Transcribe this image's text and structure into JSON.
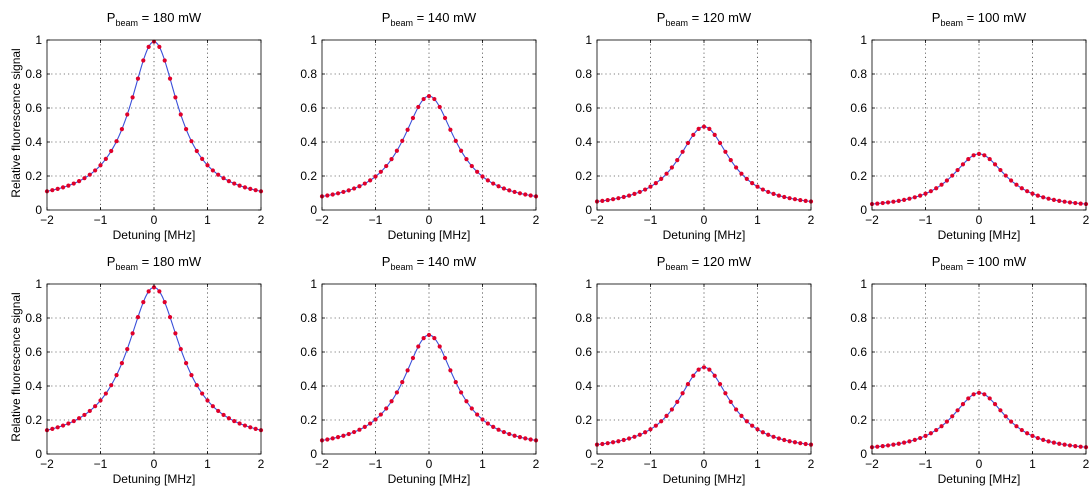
{
  "figure": {
    "ylabel": "Relative fluorescence signal",
    "xlabel": "Detuning [MHz]"
  },
  "chart_data": [
    {
      "type": "line",
      "title_main": "P",
      "title_sub": "beam",
      "title_rest": " = 180 mW",
      "xlabel": "Detuning [MHz]",
      "ylabel": "Relative fluorescence signal",
      "xlim": [
        -2,
        2
      ],
      "ylim": [
        0,
        1
      ],
      "xticks": [
        "−2",
        "−1",
        "0",
        "1",
        "2"
      ],
      "yticks": [
        "0",
        "0.2",
        "0.4",
        "0.6",
        "0.8",
        "1"
      ],
      "grid": true,
      "peak": 0.99,
      "half_width": 0.55,
      "edge": 0.11,
      "series": [
        {
          "style": "line",
          "color": "#3a4fd9"
        },
        {
          "style": "points",
          "color": "#e0002a"
        }
      ]
    },
    {
      "type": "line",
      "title_main": "P",
      "title_sub": "beam",
      "title_rest": " = 140 mW",
      "xlabel": "Detuning [MHz]",
      "ylabel": "",
      "xlim": [
        -2,
        2
      ],
      "ylim": [
        0,
        1
      ],
      "xticks": [
        "−2",
        "−1",
        "0",
        "1",
        "2"
      ],
      "yticks": [
        "0",
        "0.2",
        "0.4",
        "0.6",
        "0.8",
        "1"
      ],
      "grid": true,
      "peak": 0.67,
      "half_width": 0.6,
      "edge": 0.08,
      "series": [
        {
          "style": "line",
          "color": "#3a4fd9"
        },
        {
          "style": "points",
          "color": "#e0002a"
        }
      ]
    },
    {
      "type": "line",
      "title_main": "P",
      "title_sub": "beam",
      "title_rest": " = 120 mW",
      "xlabel": "Detuning [MHz]",
      "ylabel": "",
      "xlim": [
        -2,
        2
      ],
      "ylim": [
        0,
        1
      ],
      "xticks": [
        "−2",
        "−1",
        "0",
        "1",
        "2"
      ],
      "yticks": [
        "0",
        "0.2",
        "0.4",
        "0.6",
        "0.8",
        "1"
      ],
      "grid": true,
      "peak": 0.49,
      "half_width": 0.6,
      "edge": 0.05,
      "series": [
        {
          "style": "line",
          "color": "#3a4fd9"
        },
        {
          "style": "points",
          "color": "#e0002a"
        }
      ]
    },
    {
      "type": "line",
      "title_main": "P",
      "title_sub": "beam",
      "title_rest": " = 100 mW",
      "xlabel": "Detuning [MHz]",
      "ylabel": "",
      "xlim": [
        -2,
        2
      ],
      "ylim": [
        0,
        1
      ],
      "xticks": [
        "−2",
        "−1",
        "0",
        "1",
        "2"
      ],
      "yticks": [
        "0",
        "0.2",
        "0.4",
        "0.6",
        "0.8",
        "1"
      ],
      "grid": true,
      "peak": 0.33,
      "half_width": 0.62,
      "edge": 0.035,
      "series": [
        {
          "style": "line",
          "color": "#3a4fd9"
        },
        {
          "style": "points",
          "color": "#e0002a"
        }
      ]
    },
    {
      "type": "line",
      "title_main": "P",
      "title_sub": "beam",
      "title_rest": " = 180 mW",
      "xlabel": "Detuning [MHz]",
      "ylabel": "Relative fluorescence signal",
      "xlim": [
        -2,
        2
      ],
      "ylim": [
        0,
        1
      ],
      "xticks": [
        "−2",
        "−1",
        "0",
        "1",
        "2"
      ],
      "yticks": [
        "0",
        "0.2",
        "0.4",
        "0.6",
        "0.8",
        "1"
      ],
      "grid": true,
      "peak": 0.98,
      "half_width": 0.62,
      "edge": 0.14,
      "series": [
        {
          "style": "line",
          "color": "#3a4fd9"
        },
        {
          "style": "points",
          "color": "#e0002a"
        }
      ]
    },
    {
      "type": "line",
      "title_main": "P",
      "title_sub": "beam",
      "title_rest": " = 140 mW",
      "xlabel": "Detuning [MHz]",
      "ylabel": "",
      "xlim": [
        -2,
        2
      ],
      "ylim": [
        0,
        1
      ],
      "xticks": [
        "−2",
        "−1",
        "0",
        "1",
        "2"
      ],
      "yticks": [
        "0",
        "0.2",
        "0.4",
        "0.6",
        "0.8",
        "1"
      ],
      "grid": true,
      "peak": 0.7,
      "half_width": 0.6,
      "edge": 0.08,
      "series": [
        {
          "style": "line",
          "color": "#3a4fd9"
        },
        {
          "style": "points",
          "color": "#e0002a"
        }
      ]
    },
    {
      "type": "line",
      "title_main": "P",
      "title_sub": "beam",
      "title_rest": " = 120 mW",
      "xlabel": "Detuning [MHz]",
      "ylabel": "",
      "xlim": [
        -2,
        2
      ],
      "ylim": [
        0,
        1
      ],
      "xticks": [
        "−2",
        "−1",
        "0",
        "1",
        "2"
      ],
      "yticks": [
        "0",
        "0.2",
        "0.4",
        "0.6",
        "0.8",
        "1"
      ],
      "grid": true,
      "peak": 0.51,
      "half_width": 0.6,
      "edge": 0.055,
      "series": [
        {
          "style": "line",
          "color": "#3a4fd9"
        },
        {
          "style": "points",
          "color": "#e0002a"
        }
      ]
    },
    {
      "type": "line",
      "title_main": "P",
      "title_sub": "beam",
      "title_rest": " = 100 mW",
      "xlabel": "Detuning [MHz]",
      "ylabel": "",
      "xlim": [
        -2,
        2
      ],
      "ylim": [
        0,
        1
      ],
      "xticks": [
        "−2",
        "−1",
        "0",
        "1",
        "2"
      ],
      "yticks": [
        "0",
        "0.2",
        "0.4",
        "0.6",
        "0.8",
        "1"
      ],
      "grid": true,
      "peak": 0.36,
      "half_width": 0.62,
      "edge": 0.04,
      "series": [
        {
          "style": "line",
          "color": "#3a4fd9"
        },
        {
          "style": "points",
          "color": "#e0002a"
        }
      ]
    }
  ]
}
